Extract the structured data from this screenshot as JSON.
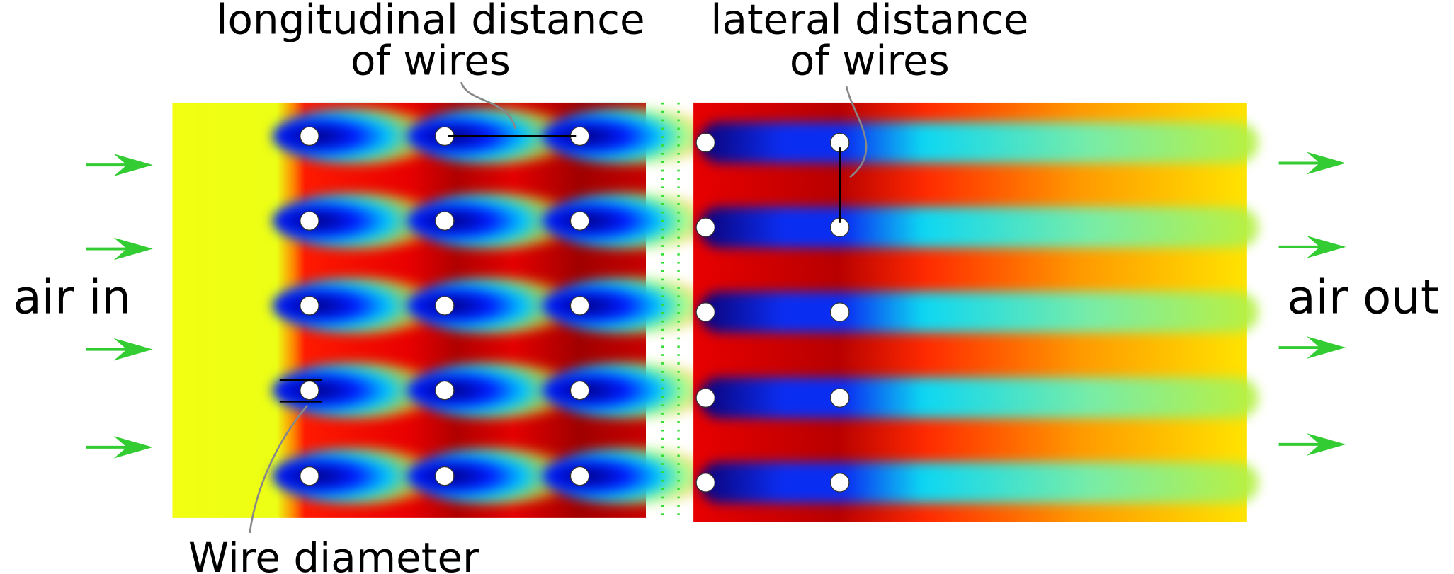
{
  "labels": {
    "longitudinal_distance": [
      "longitudinal distance",
      "of wires"
    ],
    "lateral_distance": [
      "lateral distance",
      "of wires"
    ],
    "air_in": "air in",
    "air_out": "air out",
    "wire_diameter": "Wire diameter"
  }
}
